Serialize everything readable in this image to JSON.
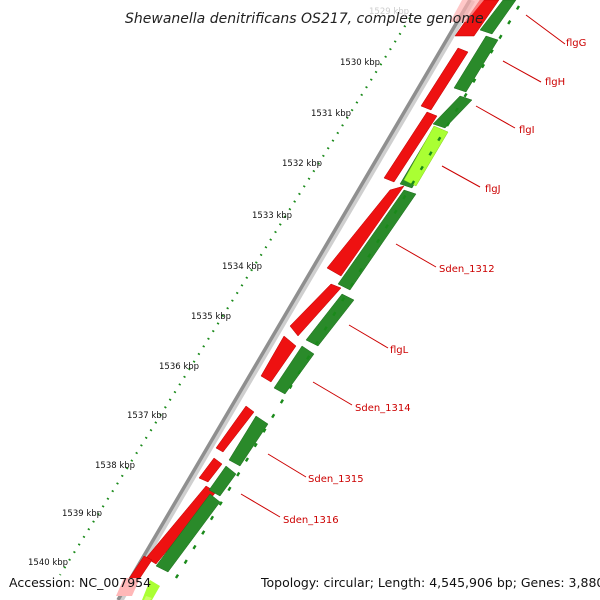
{
  "title": "Shewanella denitrificans OS217, complete genome",
  "footer": {
    "accession": "Accession: NC_007954",
    "summary": "Topology: circular; Length: 4,545,906 bp; Genes: 3,880"
  },
  "ticks": [
    "1529 kbp",
    "1530 kbp",
    "1531 kbp",
    "1532 kbp",
    "1533 kbp",
    "1534 kbp",
    "1535 kbp",
    "1536 kbp",
    "1537 kbp",
    "1538 kbp",
    "1539 kbp",
    "1540 kbp"
  ],
  "genes": [
    "flgG",
    "flgH",
    "flgI",
    "flgJ",
    "Sden_1312",
    "flgL",
    "Sden_1314",
    "Sden_1315",
    "Sden_1316"
  ],
  "colors": {
    "forward_strand": "#ee1111",
    "reverse_strand": "#2a8a2a",
    "highlight": "#aaff33",
    "backbone": "#999999",
    "label": "#cc0000",
    "tick": "#1a8a1a"
  }
}
